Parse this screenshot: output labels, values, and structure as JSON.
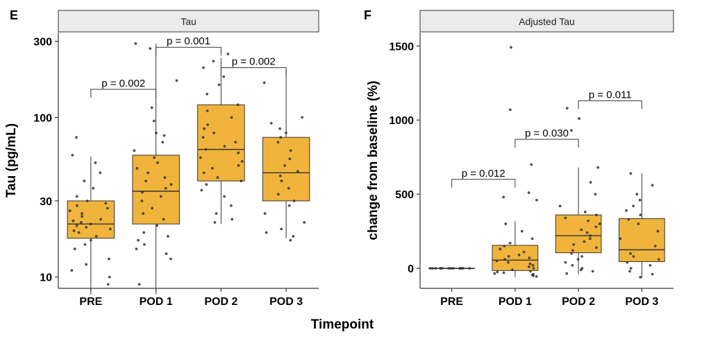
{
  "figure": {
    "xlabel": "Timepoint"
  },
  "chart_data": [
    {
      "panel_letter": "E",
      "type": "box",
      "title": "Tau",
      "ylabel": "Tau (pg/mL)",
      "yscale": "log",
      "ylim": [
        8.5,
        340
      ],
      "yticks": [
        10,
        30,
        100,
        300
      ],
      "categories": [
        "PRE",
        "POD 1",
        "POD 2",
        "POD 3"
      ],
      "box_color": "#f0b43c",
      "boxes": [
        {
          "q1": 17.5,
          "median": 21.5,
          "q3": 30,
          "whisker_low": 7.8,
          "whisker_high": 57
        },
        {
          "q1": 21.5,
          "median": 34.5,
          "q3": 58,
          "whisker_low": 7.8,
          "whisker_high": 290
        },
        {
          "q1": 40,
          "median": 63,
          "q3": 120,
          "whisker_low": 21.5,
          "whisker_high": 235
        },
        {
          "q1": 30,
          "median": 45,
          "q3": 75,
          "whisker_low": 17.5,
          "whisker_high": 200
        }
      ],
      "points": [
        [
          9,
          10,
          11,
          12,
          13,
          15,
          16,
          17,
          18,
          19,
          19.5,
          20,
          20.5,
          21,
          21.5,
          22,
          22.5,
          23,
          24,
          25,
          26,
          27,
          28,
          29,
          30,
          32,
          36,
          40,
          45,
          52,
          58,
          75
        ],
        [
          9,
          13,
          14,
          15,
          16,
          17,
          18,
          19,
          21,
          23,
          25,
          27,
          30,
          32,
          34,
          36,
          38,
          40,
          42,
          45,
          48,
          52,
          56,
          62,
          70,
          77,
          80,
          95,
          115,
          170,
          270,
          290
        ],
        [
          22,
          23,
          25,
          28,
          32,
          35,
          38,
          40,
          42,
          45,
          48,
          50,
          53,
          56,
          60,
          63,
          66,
          70,
          75,
          80,
          85,
          90,
          100,
          110,
          120,
          140,
          160,
          180,
          205,
          225,
          250
        ],
        [
          17,
          18,
          19,
          20,
          22,
          25,
          28,
          30,
          33,
          36,
          40,
          43,
          46,
          50,
          55,
          62,
          70,
          75,
          80,
          85,
          92,
          100,
          165
        ]
      ],
      "annotations": [
        {
          "from": 0,
          "to": 1,
          "text": "p = 0.002",
          "y": 150
        },
        {
          "from": 1,
          "to": 2,
          "text": "p = 0.001",
          "y": 275
        },
        {
          "from": 2,
          "to": 3,
          "text": "p = 0.002",
          "y": 205
        }
      ]
    },
    {
      "panel_letter": "F",
      "type": "box",
      "title": "Adjusted Tau",
      "ylabel": "change from baseline (%)",
      "yscale": "linear",
      "ylim": [
        -135,
        1590
      ],
      "yticks": [
        0,
        500,
        1000,
        1500
      ],
      "categories": [
        "PRE",
        "POD 1",
        "POD 2",
        "POD 3"
      ],
      "box_color": "#f0b43c",
      "boxes": [
        {
          "q1": 0,
          "median": 0,
          "q3": 0,
          "whisker_low": 0,
          "whisker_high": 0
        },
        {
          "q1": -15,
          "median": 55,
          "q3": 155,
          "whisker_low": -60,
          "whisker_high": 320
        },
        {
          "q1": 105,
          "median": 220,
          "q3": 360,
          "whisker_low": -40,
          "whisker_high": 680
        },
        {
          "q1": 45,
          "median": 125,
          "q3": 335,
          "whisker_low": -65,
          "whisker_high": 640
        }
      ],
      "points": [
        [
          0,
          0,
          0,
          0,
          0,
          0,
          0,
          0,
          0,
          0,
          0,
          0,
          0,
          0
        ],
        [
          -55,
          -50,
          -45,
          -40,
          -35,
          -30,
          -25,
          -20,
          -10,
          0,
          10,
          20,
          30,
          40,
          50,
          60,
          70,
          80,
          90,
          110,
          130,
          150,
          170,
          200,
          250,
          300,
          460,
          480,
          510,
          700,
          1070,
          1490
        ],
        [
          -35,
          -20,
          -10,
          0,
          20,
          40,
          60,
          80,
          100,
          120,
          140,
          160,
          180,
          200,
          220,
          240,
          260,
          280,
          300,
          320,
          340,
          360,
          380,
          420,
          500,
          580,
          680,
          930,
          1010,
          1080
        ],
        [
          -60,
          -40,
          -20,
          0,
          20,
          40,
          60,
          80,
          100,
          150,
          200,
          250,
          300,
          330,
          360,
          390,
          420,
          460,
          500,
          560,
          640
        ]
      ],
      "annotations": [
        {
          "from": 0,
          "to": 1,
          "text": "p = 0.012",
          "y": 600
        },
        {
          "from": 1,
          "to": 2,
          "text": "p = 0.030",
          "y": 870
        },
        {
          "from": 2,
          "to": 3,
          "text": "p = 0.011",
          "y": 1130
        }
      ]
    }
  ]
}
